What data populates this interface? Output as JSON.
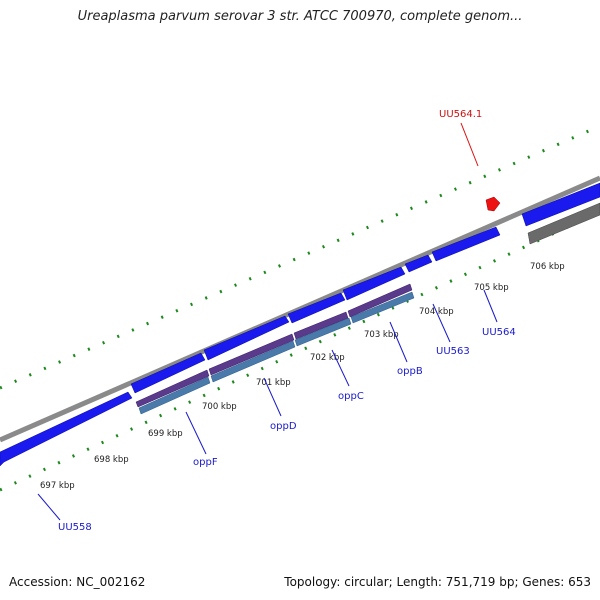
{
  "title": "Ureaplasma parvum serovar 3 str. ATCC 700970, complete genom...",
  "footer": {
    "accession": "Accession: NC_002162",
    "summary": "Topology: circular; Length: 751,719 bp; Genes: 653"
  },
  "ticks": [
    "697 kbp",
    "698 kbp",
    "699 kbp",
    "700 kbp",
    "701 kbp",
    "702 kbp",
    "703 kbp",
    "704 kbp",
    "705 kbp",
    "706 kbp"
  ],
  "genes": [
    "UU558",
    "oppF",
    "oppD",
    "oppC",
    "oppB",
    "UU563",
    "UU564"
  ],
  "rna_label": "UU564.1",
  "colors": {
    "gene": "#1a1aee",
    "rna": "#ee1111",
    "backbone": "#888888",
    "tick": "#1b8a1b",
    "cds_purple": "#5a3a8a",
    "cds_steel": "#4a7aaa"
  }
}
